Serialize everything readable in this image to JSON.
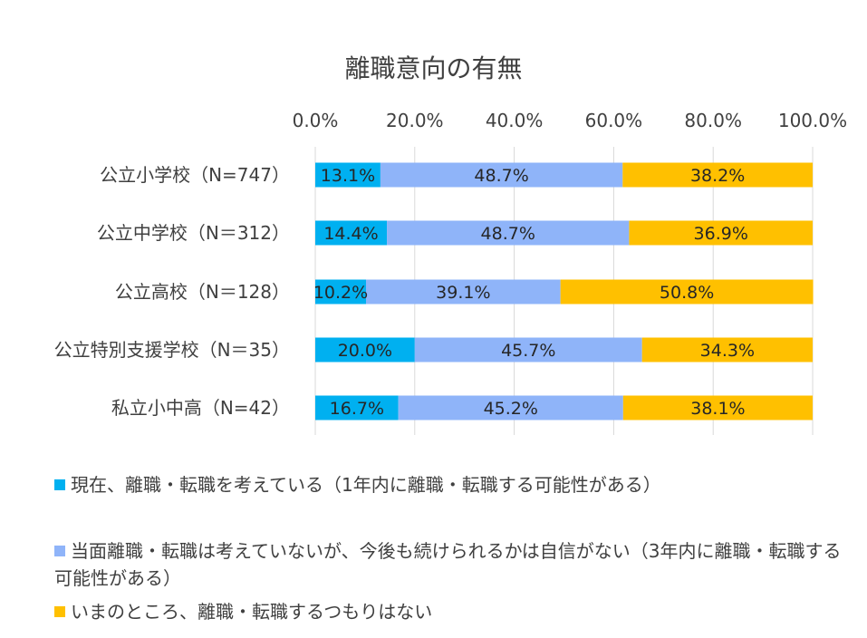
{
  "chart_data": {
    "type": "bar",
    "orientation": "horizontal",
    "stacked": true,
    "title": "離職意向の有無",
    "categories": [
      "公立小学校（N=747）",
      "公立中学校（N＝312）",
      "公立高校（N＝128）",
      "公立特別支援学校（N＝35）",
      "私立小中高（N=42）"
    ],
    "series": [
      {
        "name": "現在、離職・転職を考えている（1年内に離職・転職する可能性がある）",
        "color": "#00B0F0",
        "values": [
          13.1,
          14.4,
          10.2,
          20.0,
          16.7
        ],
        "labels": [
          "13.1%",
          "14.4%",
          "10.2%",
          "20.0%",
          "16.7%"
        ]
      },
      {
        "name": "当面離職・転職は考えていないが、今後も続けられるかは自信がない（3年内に離職・転職する可能性がある）",
        "color": "#8FB4F9",
        "values": [
          48.7,
          48.7,
          39.1,
          45.7,
          45.2
        ],
        "labels": [
          "48.7%",
          "48.7%",
          "39.1%",
          "45.7%",
          "45.2%"
        ]
      },
      {
        "name": "いまのところ、離職・転職するつもりはない",
        "color": "#FFC000",
        "values": [
          38.2,
          36.9,
          50.8,
          34.3,
          38.1
        ],
        "labels": [
          "38.2%",
          "36.9%",
          "50.8%",
          "34.3%",
          "38.1%"
        ]
      }
    ],
    "xlim": [
      0,
      100
    ],
    "xticks": [
      "0.0%",
      "20.0%",
      "40.0%",
      "60.0%",
      "80.0%",
      "100.0%"
    ],
    "grid": true,
    "axis_position": "top",
    "legend_position": "bottom"
  }
}
